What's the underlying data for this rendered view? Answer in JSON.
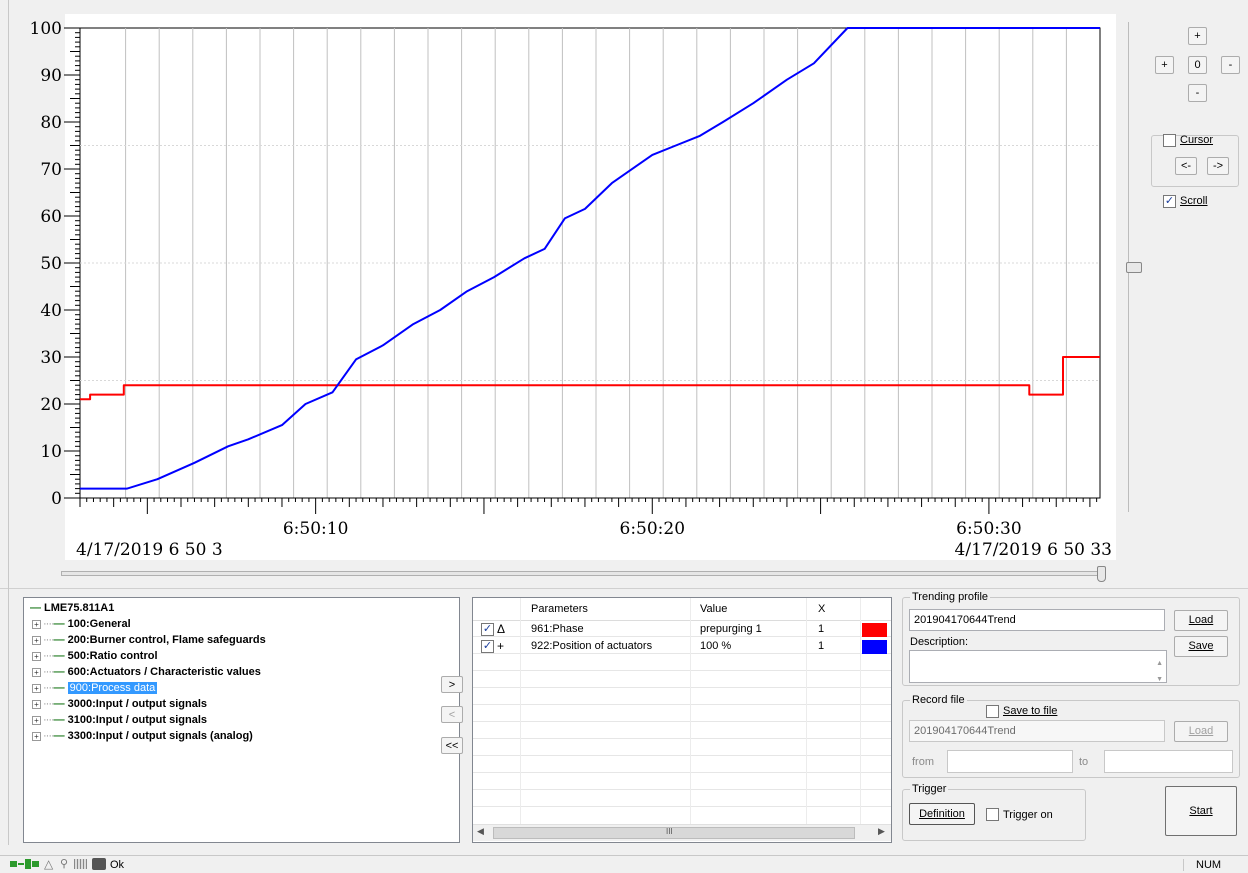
{
  "chart_data": {
    "type": "line",
    "xlabel": "",
    "ylabel": "",
    "ylim": [
      0,
      100
    ],
    "yticks": [
      "0",
      "10",
      "20",
      "30",
      "40",
      "50",
      "60",
      "70",
      "80",
      "90",
      "100"
    ],
    "x_tick_labels": [
      "6:50:10",
      "6:50:20",
      "6:50:30"
    ],
    "x_tick_seconds": [
      10,
      20,
      30
    ],
    "xlim_seconds": [
      3,
      33.3
    ],
    "start_label": "4/17/2019 6 50 3",
    "end_label": "4/17/2019 6 50 33",
    "series": [
      {
        "name": "961:Phase",
        "color": "#ff0000",
        "points": [
          [
            3.0,
            21
          ],
          [
            3.3,
            21
          ],
          [
            3.3,
            22
          ],
          [
            4.3,
            22
          ],
          [
            4.3,
            24
          ],
          [
            31.2,
            24
          ],
          [
            31.2,
            22
          ],
          [
            32.2,
            22
          ],
          [
            32.2,
            30
          ],
          [
            33.3,
            30
          ]
        ]
      },
      {
        "name": "922:Position of actuators",
        "color": "#0000ff",
        "points": [
          [
            3.0,
            2
          ],
          [
            4.4,
            2
          ],
          [
            5.3,
            4
          ],
          [
            6.4,
            7.5
          ],
          [
            7.4,
            11
          ],
          [
            8.0,
            12.5
          ],
          [
            9.0,
            15.5
          ],
          [
            9.7,
            20
          ],
          [
            10.5,
            22.5
          ],
          [
            11.2,
            29.5
          ],
          [
            12.0,
            32.5
          ],
          [
            12.9,
            37
          ],
          [
            13.7,
            40
          ],
          [
            14.5,
            44
          ],
          [
            15.3,
            47
          ],
          [
            16.2,
            51
          ],
          [
            16.8,
            53
          ],
          [
            17.4,
            59.5
          ],
          [
            18.0,
            61.5
          ],
          [
            18.8,
            67
          ],
          [
            19.5,
            70.5
          ],
          [
            20.0,
            73
          ],
          [
            20.7,
            75
          ],
          [
            21.4,
            77
          ],
          [
            22.1,
            80
          ],
          [
            23.0,
            84
          ],
          [
            24.0,
            89
          ],
          [
            24.8,
            92.5
          ],
          [
            25.8,
            100
          ],
          [
            33.3,
            100
          ]
        ]
      }
    ]
  },
  "controls": {
    "zoom_plus_top": "+",
    "zoom_plus_left": "+",
    "zoom_zero": "0",
    "zoom_minus_right": "-",
    "zoom_minus_bottom": "-",
    "cursor_label": "Cursor",
    "cursor_checked": false,
    "cursor_left": "<-",
    "cursor_right": "->",
    "scroll_label": "Scroll",
    "scroll_checked": true
  },
  "tree": {
    "root": "LME75.811A1",
    "items": [
      {
        "label": "100:General",
        "selected": false
      },
      {
        "label": "200:Burner control, Flame safeguards",
        "selected": false
      },
      {
        "label": "500:Ratio control",
        "selected": false
      },
      {
        "label": "600:Actuators / Characteristic values",
        "selected": false
      },
      {
        "label": "900:Process data",
        "selected": true
      },
      {
        "label": "3000:Input / output signals",
        "selected": false
      },
      {
        "label": "3100:Input / output signals",
        "selected": false
      },
      {
        "label": "3300:Input / output signals (analog)",
        "selected": false
      }
    ]
  },
  "transfer": {
    "add": ">",
    "remove": "<",
    "remove_all": "<<"
  },
  "params": {
    "columns": [
      "Parameters",
      "Value",
      "X"
    ],
    "rows": [
      {
        "checked": true,
        "marker": "Δ",
        "param": "961:Phase",
        "value": "prepurging 1",
        "x": "1",
        "color": "#ff0000"
      },
      {
        "checked": true,
        "marker": "+",
        "param": "922:Position of actuators",
        "value": "100 %",
        "x": "1",
        "color": "#0000ff"
      }
    ],
    "hscroll_grip": "III"
  },
  "trending": {
    "title": "Trending profile",
    "profile_value": "201904170644Trend",
    "load": "Load",
    "save": "Save",
    "description_label": "Description:"
  },
  "record": {
    "title": "Record file",
    "save_to_file": "Save to file",
    "file_value": "201904170644Trend",
    "load": "Load",
    "from_label": "from",
    "to_label": "to"
  },
  "trigger": {
    "title": "Trigger",
    "definition": "Definition",
    "trigger_on": "Trigger on"
  },
  "start": "Start",
  "status": {
    "text": "Ok",
    "num": "NUM"
  }
}
